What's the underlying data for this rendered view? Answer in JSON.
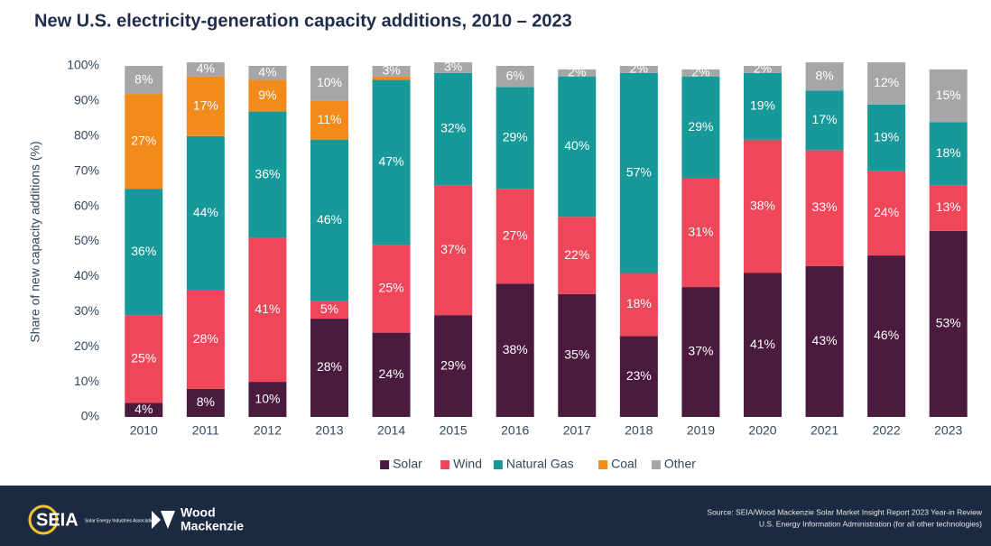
{
  "chart_data": {
    "type": "stacked_bar",
    "title": "New U.S. electricity-generation capacity additions, 2010 – 2023",
    "y_label": "Share of new capacity additions (%)",
    "categories": [
      "2010",
      "2011",
      "2012",
      "2013",
      "2014",
      "2015",
      "2016",
      "2017",
      "2018",
      "2019",
      "2020",
      "2021",
      "2022",
      "2023"
    ],
    "ylim": [
      0,
      100
    ],
    "yticks": [
      {
        "value": 0,
        "label": "0%"
      },
      {
        "value": 10,
        "label": "10%"
      },
      {
        "value": 20,
        "label": "20%"
      },
      {
        "value": 30,
        "label": "30%"
      },
      {
        "value": 40,
        "label": "40%"
      },
      {
        "value": 50,
        "label": "50%"
      },
      {
        "value": 60,
        "label": "60%"
      },
      {
        "value": 70,
        "label": "70%"
      },
      {
        "value": 80,
        "label": "80%"
      },
      {
        "value": 90,
        "label": "90%"
      },
      {
        "value": 100,
        "label": "100%"
      }
    ],
    "legend": "bottom",
    "series": [
      {
        "name": "Solar",
        "color": "#4b1b3f",
        "values": [
          4,
          8,
          10,
          28,
          24,
          29,
          38,
          35,
          23,
          37,
          41,
          43,
          46,
          53
        ],
        "value_labels": [
          "4%",
          "8%",
          "10%",
          "28%",
          "24%",
          "29%",
          "38%",
          "35%",
          "23%",
          "37%",
          "41%",
          "43%",
          "46%",
          "53%"
        ]
      },
      {
        "name": "Wind",
        "color": "#f0465a",
        "values": [
          25,
          28,
          41,
          5,
          25,
          37,
          27,
          22,
          18,
          31,
          38,
          33,
          24,
          13
        ],
        "value_labels": [
          "25%",
          "28%",
          "41%",
          "5%",
          "25%",
          "37%",
          "27%",
          "22%",
          "18%",
          "31%",
          "38%",
          "33%",
          "24%",
          "13%"
        ]
      },
      {
        "name": "Natural Gas",
        "color": "#17999a",
        "values": [
          36,
          44,
          36,
          46,
          47,
          32,
          29,
          40,
          57,
          29,
          19,
          17,
          19,
          18
        ],
        "value_labels": [
          "36%",
          "44%",
          "36%",
          "46%",
          "47%",
          "32%",
          "29%",
          "40%",
          "57%",
          "29%",
          "19%",
          "17%",
          "19%",
          "18%"
        ]
      },
      {
        "name": "Coal",
        "color": "#f28a1c",
        "values": [
          27,
          17,
          9,
          11,
          1,
          0,
          0,
          0,
          0,
          0,
          0,
          0,
          0,
          0
        ],
        "value_labels": [
          "27%",
          "17%",
          "9%",
          "11%",
          null,
          null,
          null,
          null,
          null,
          null,
          null,
          null,
          null,
          null
        ]
      },
      {
        "name": "Other",
        "color": "#a6a6a6",
        "values": [
          8,
          4,
          4,
          10,
          3,
          3,
          6,
          2,
          2,
          2,
          2,
          8,
          12,
          15
        ],
        "value_labels": [
          "8%",
          "4%",
          "4%",
          "10%",
          "3%",
          "3%",
          "6%",
          "2%",
          "2%",
          "2%",
          "2%",
          "8%",
          "12%",
          "15%"
        ]
      }
    ]
  },
  "footer": {
    "seia": "SEIA",
    "seia_tagline": "Solar Energy Industries Association",
    "woodmac_1": "Wood",
    "woodmac_2": "Mackenzie",
    "source_1": "Source: SEIA/Wood Mackenzie Solar Market Insight Report 2023 Year-in Review",
    "source_2": "U.S. Energy Information Administration (for all other technologies)"
  }
}
